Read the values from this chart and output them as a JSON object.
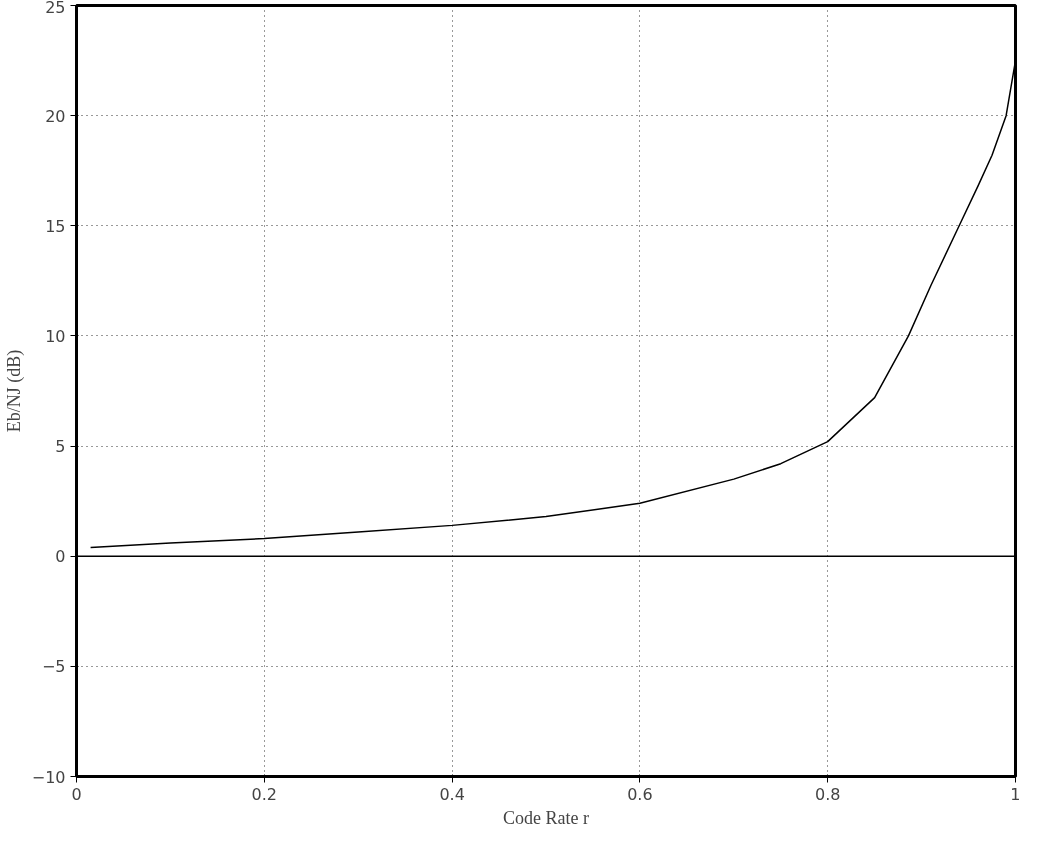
{
  "chart_data": {
    "type": "line",
    "xlabel": "Code Rate r",
    "ylabel": "Eb/NJ (dB)",
    "x": [
      0.015,
      0.1,
      0.2,
      0.3,
      0.4,
      0.5,
      0.6,
      0.7,
      0.75,
      0.8,
      0.85,
      0.886,
      0.91,
      0.94,
      0.96,
      0.975,
      0.99,
      1.0
    ],
    "series": [
      {
        "color": "#000000",
        "values": [
          0.4,
          0.6,
          0.8,
          1.1,
          1.4,
          1.8,
          2.4,
          3.5,
          4.2,
          5.2,
          7.2,
          10.0,
          12.3,
          15.0,
          16.8,
          18.2,
          20.0,
          22.5
        ]
      }
    ],
    "xlim": [
      0,
      1
    ],
    "ylim": [
      -10,
      25
    ],
    "xticks": [
      0,
      0.2,
      0.4,
      0.6,
      0.8,
      1
    ],
    "yticks": [
      -10,
      -5,
      0,
      5,
      10,
      15,
      20,
      25
    ],
    "ref_lines": [
      {
        "axis": "y",
        "value": 0,
        "color": "#000000",
        "line_style": "solid"
      }
    ],
    "grid": true,
    "line_style": "solid",
    "marker": "none"
  }
}
